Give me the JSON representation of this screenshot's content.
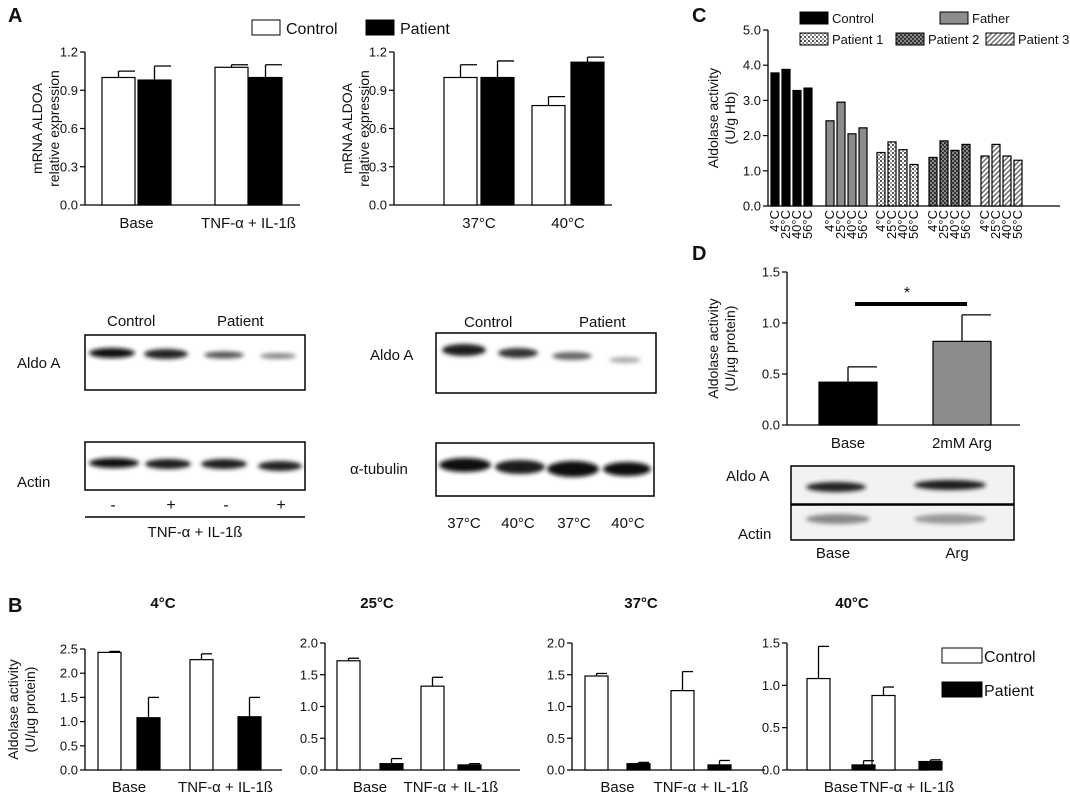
{
  "panels": [
    "A",
    "B",
    "C",
    "D"
  ],
  "legend_a": [
    "Control",
    "Patient"
  ],
  "legend_b": [
    "Control",
    "Patient"
  ],
  "legend_c": [
    "Control",
    "Father",
    "Patient 1",
    "Patient 2",
    "Patient 3"
  ],
  "colors": {
    "control": "#ffffff",
    "patient": "#000000",
    "father": "#8c8c8c",
    "outline": "#000000"
  },
  "blots": {
    "a1": {
      "header": [
        "Control",
        "Patient"
      ],
      "row1": "Aldo A",
      "row2": "Actin",
      "signs": [
        "-",
        "+",
        "-",
        "+"
      ],
      "footer": "TNF-α + IL-1ß"
    },
    "a2": {
      "header": [
        "Control",
        "Patient"
      ],
      "row1": "Aldo A",
      "row2": "α-tubulin",
      "temps": [
        "37°C",
        "40°C",
        "37°C",
        "40°C"
      ]
    },
    "d": {
      "row1": "Aldo A",
      "row2": "Actin",
      "lanes": [
        "Base",
        "Arg"
      ]
    }
  },
  "chart_data": [
    {
      "id": "A1",
      "type": "bar",
      "ylabel": [
        "mRNA ALDOA",
        "relative expression"
      ],
      "categories": [
        "Base",
        "TNF-α + IL-1ß"
      ],
      "ylim": [
        0,
        1.2
      ],
      "yticks": [
        "0.0",
        "0.3",
        "0.6",
        "0.9",
        "1.2"
      ],
      "series": [
        {
          "name": "Control",
          "values": [
            1.0,
            1.08
          ],
          "errors": [
            0.05,
            0.02
          ]
        },
        {
          "name": "Patient",
          "values": [
            0.98,
            1.0
          ],
          "errors": [
            0.11,
            0.1
          ]
        }
      ]
    },
    {
      "id": "A2",
      "type": "bar",
      "ylabel": [
        "mRNA ALDOA",
        "relative expression"
      ],
      "categories": [
        "37°C",
        "40°C"
      ],
      "ylim": [
        0,
        1.2
      ],
      "yticks": [
        "0.0",
        "0.3",
        "0.6",
        "0.9",
        "1.2"
      ],
      "series": [
        {
          "name": "Control",
          "values": [
            1.0,
            0.78
          ],
          "errors": [
            0.1,
            0.07
          ]
        },
        {
          "name": "Patient",
          "values": [
            1.0,
            1.12
          ],
          "errors": [
            0.13,
            0.04
          ]
        }
      ]
    },
    {
      "id": "C",
      "type": "bar",
      "ylabel": [
        "Aldolase activity",
        "(U/g Hb)"
      ],
      "ylim": [
        0,
        5
      ],
      "yticks": [
        "0.0",
        "1.0",
        "2.0",
        "3.0",
        "4.0",
        "5.0"
      ],
      "tick_labels": [
        "4°C",
        "25°C",
        "40°C",
        "56°C"
      ],
      "groups": [
        {
          "name": "Control",
          "values": [
            3.78,
            3.88,
            3.28,
            3.35
          ]
        },
        {
          "name": "Father",
          "values": [
            2.42,
            2.95,
            2.05,
            2.22
          ]
        },
        {
          "name": "Patient 1",
          "values": [
            1.52,
            1.82,
            1.6,
            1.18
          ]
        },
        {
          "name": "Patient 2",
          "values": [
            1.38,
            1.85,
            1.58,
            1.75
          ]
        },
        {
          "name": "Patient 3",
          "values": [
            1.42,
            1.75,
            1.42,
            1.3
          ]
        }
      ]
    },
    {
      "id": "D",
      "type": "bar",
      "ylabel": [
        "Aldolase activity",
        "(U/µg protein)"
      ],
      "categories": [
        "Base",
        "2mM Arg"
      ],
      "ylim": [
        0,
        1.5
      ],
      "yticks": [
        "0.0",
        "0.5",
        "1.0",
        "1.5"
      ],
      "values": [
        0.42,
        0.82
      ],
      "errors": [
        0.15,
        0.26
      ],
      "annotation": "*"
    },
    {
      "id": "B1",
      "type": "bar",
      "title": "4°C",
      "ylabel": [
        "Aldolase activity",
        "(U/µg protein)"
      ],
      "categories": [
        "Base",
        "TNF-α + IL-1ß"
      ],
      "ylim": [
        0,
        2.5
      ],
      "yticks": [
        "0.0",
        "0.5",
        "1.0",
        "1.5",
        "2.0",
        "2.5"
      ],
      "series": [
        {
          "name": "Control",
          "values": [
            2.43,
            2.28
          ],
          "errors": [
            0.02,
            0.12
          ]
        },
        {
          "name": "Patient",
          "values": [
            1.08,
            1.1
          ],
          "errors": [
            0.42,
            0.4
          ]
        }
      ]
    },
    {
      "id": "B2",
      "type": "bar",
      "title": "25°C",
      "categories": [
        "Base",
        "TNF-α + IL-1ß"
      ],
      "ylim": [
        0,
        2.0
      ],
      "yticks": [
        "0.0",
        "0.5",
        "1.0",
        "1.5",
        "2.0"
      ],
      "series": [
        {
          "name": "Control",
          "values": [
            1.72,
            1.32
          ],
          "errors": [
            0.04,
            0.14
          ]
        },
        {
          "name": "Patient",
          "values": [
            0.1,
            0.08
          ],
          "errors": [
            0.08,
            0.02
          ]
        }
      ]
    },
    {
      "id": "B3",
      "type": "bar",
      "title": "37°C",
      "categories": [
        "Base",
        "TNF-α + IL-1ß"
      ],
      "ylim": [
        0,
        2.0
      ],
      "yticks": [
        "0.0",
        "0.5",
        "1.0",
        "1.5",
        "2.0"
      ],
      "series": [
        {
          "name": "Control",
          "values": [
            1.48,
            1.25
          ],
          "errors": [
            0.04,
            0.3
          ]
        },
        {
          "name": "Patient",
          "values": [
            0.1,
            0.08
          ],
          "errors": [
            0.02,
            0.07
          ]
        }
      ]
    },
    {
      "id": "B4",
      "type": "bar",
      "title": "40°C",
      "categories": [
        "Base",
        "TNF-α + IL-1ß"
      ],
      "ylim": [
        0,
        1.5
      ],
      "yticks": [
        "0.0",
        "0.5",
        "1.0",
        "1.5"
      ],
      "series": [
        {
          "name": "Control",
          "values": [
            1.08,
            0.88
          ],
          "errors": [
            0.38,
            0.1
          ]
        },
        {
          "name": "Patient",
          "values": [
            0.06,
            0.1
          ],
          "errors": [
            0.05,
            0.02
          ]
        }
      ]
    }
  ]
}
